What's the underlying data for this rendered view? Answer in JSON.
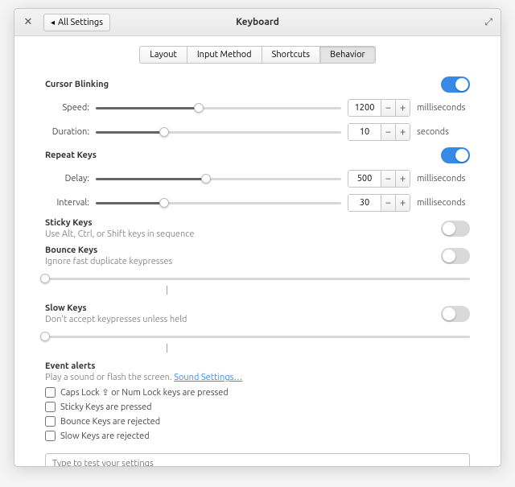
{
  "header": {
    "title": "Keyboard",
    "back": "All Settings"
  },
  "tabs": [
    {
      "label": "Layout"
    },
    {
      "label": "Input Method"
    },
    {
      "label": "Shortcuts"
    },
    {
      "label": "Behavior",
      "active": true
    }
  ],
  "cursor": {
    "title": "Cursor Blinking",
    "on": true,
    "speed": {
      "label": "Speed:",
      "value": 1200,
      "unit": "milliseconds",
      "pct": 42
    },
    "duration": {
      "label": "Duration:",
      "value": 10,
      "unit": "seconds",
      "pct": 28
    }
  },
  "repeat": {
    "title": "Repeat Keys",
    "on": true,
    "delay": {
      "label": "Delay:",
      "value": 500,
      "unit": "milliseconds",
      "pct": 45
    },
    "interval": {
      "label": "Interval:",
      "value": 30,
      "unit": "milliseconds",
      "pct": 28
    }
  },
  "sticky": {
    "title": "Sticky Keys",
    "sub": "Use Alt, Ctrl, or Shift keys in sequence",
    "on": false
  },
  "bounce": {
    "title": "Bounce Keys",
    "sub": "Ignore fast duplicate keypresses",
    "on": false,
    "pct": 0
  },
  "slow": {
    "title": "Slow Keys",
    "sub": "Don't accept keypresses unless held",
    "on": false,
    "pct": 0
  },
  "alerts": {
    "title": "Event alerts",
    "sub_pre": "Play a sound or flash the screen. ",
    "link": "Sound Settings…",
    "items": [
      {
        "label": "Caps Lock ⇪ or Num Lock keys are pressed"
      },
      {
        "label": "Sticky Keys are pressed"
      },
      {
        "label": "Bounce Keys are rejected"
      },
      {
        "label": "Slow Keys are rejected"
      }
    ]
  },
  "test_placeholder": "Type to test your settings"
}
